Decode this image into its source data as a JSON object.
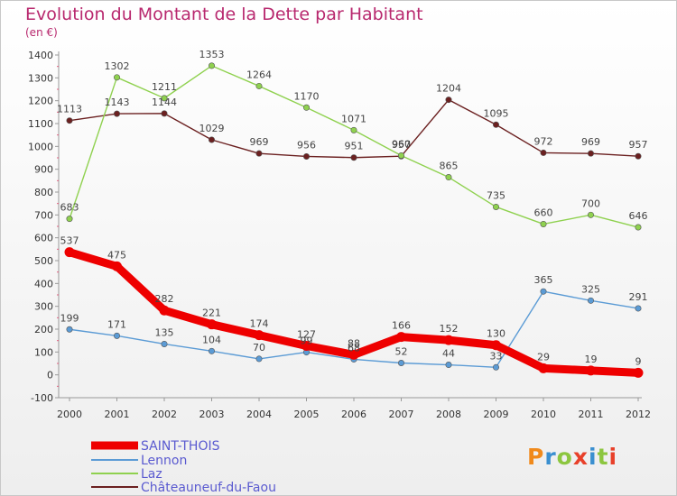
{
  "title": "Evolution du Montant de la Dette par Habitant",
  "subtitle": "(en €)",
  "brand": {
    "text": "Proxiti",
    "colors": [
      "#f08a1c",
      "#3a8fd0",
      "#8cc63f",
      "#e8402a",
      "#3a8fd0",
      "#8cc63f",
      "#e8402a"
    ]
  },
  "chart_data": {
    "type": "line",
    "x": [
      "2000",
      "2001",
      "2002",
      "2003",
      "2004",
      "2005",
      "2006",
      "2007",
      "2008",
      "2009",
      "2010",
      "2011",
      "2012"
    ],
    "ylim": [
      -100,
      1400
    ],
    "yticks": [
      -100,
      0,
      100,
      200,
      300,
      400,
      500,
      600,
      700,
      800,
      900,
      1000,
      1100,
      1200,
      1300,
      1400
    ],
    "grid": false,
    "series": [
      {
        "name": "SAINT-THOIS",
        "color": "#ee0000",
        "values": [
          537,
          475,
          282,
          221,
          174,
          127,
          88,
          166,
          152,
          130,
          29,
          19,
          9
        ]
      },
      {
        "name": "Lennon",
        "color": "#5b9bd5",
        "values": [
          199,
          171,
          135,
          104,
          70,
          99,
          68,
          52,
          44,
          33,
          365,
          325,
          291
        ]
      },
      {
        "name": "Laz",
        "color": "#8fd14f",
        "values": [
          683,
          1302,
          1211,
          1353,
          1264,
          1170,
          1071,
          960,
          865,
          735,
          660,
          700,
          646
        ]
      },
      {
        "name": "Châteauneuf-du-Faou",
        "color": "#6b2020",
        "values": [
          1113,
          1143,
          1144,
          1029,
          969,
          956,
          951,
          957,
          1204,
          1095,
          972,
          969,
          957
        ]
      }
    ],
    "labels": [
      [
        "537",
        "475",
        "282",
        "221",
        "174",
        "127",
        "88",
        "166",
        "152",
        "130",
        "29",
        "19",
        "9"
      ],
      [
        "199",
        "171",
        "135",
        "104",
        "70",
        "99",
        "68",
        "52",
        "44",
        "33",
        "365",
        "325",
        "291"
      ],
      [
        "683",
        "1302",
        "1211",
        "1353",
        "1264",
        "1170",
        "1071",
        "960",
        "865",
        "735",
        "660",
        "700",
        "646"
      ],
      [
        "1113",
        "1143",
        "1144",
        "1029",
        "969",
        "956",
        "951",
        "957",
        "1204",
        "1095",
        "972",
        "969",
        "957"
      ]
    ]
  }
}
